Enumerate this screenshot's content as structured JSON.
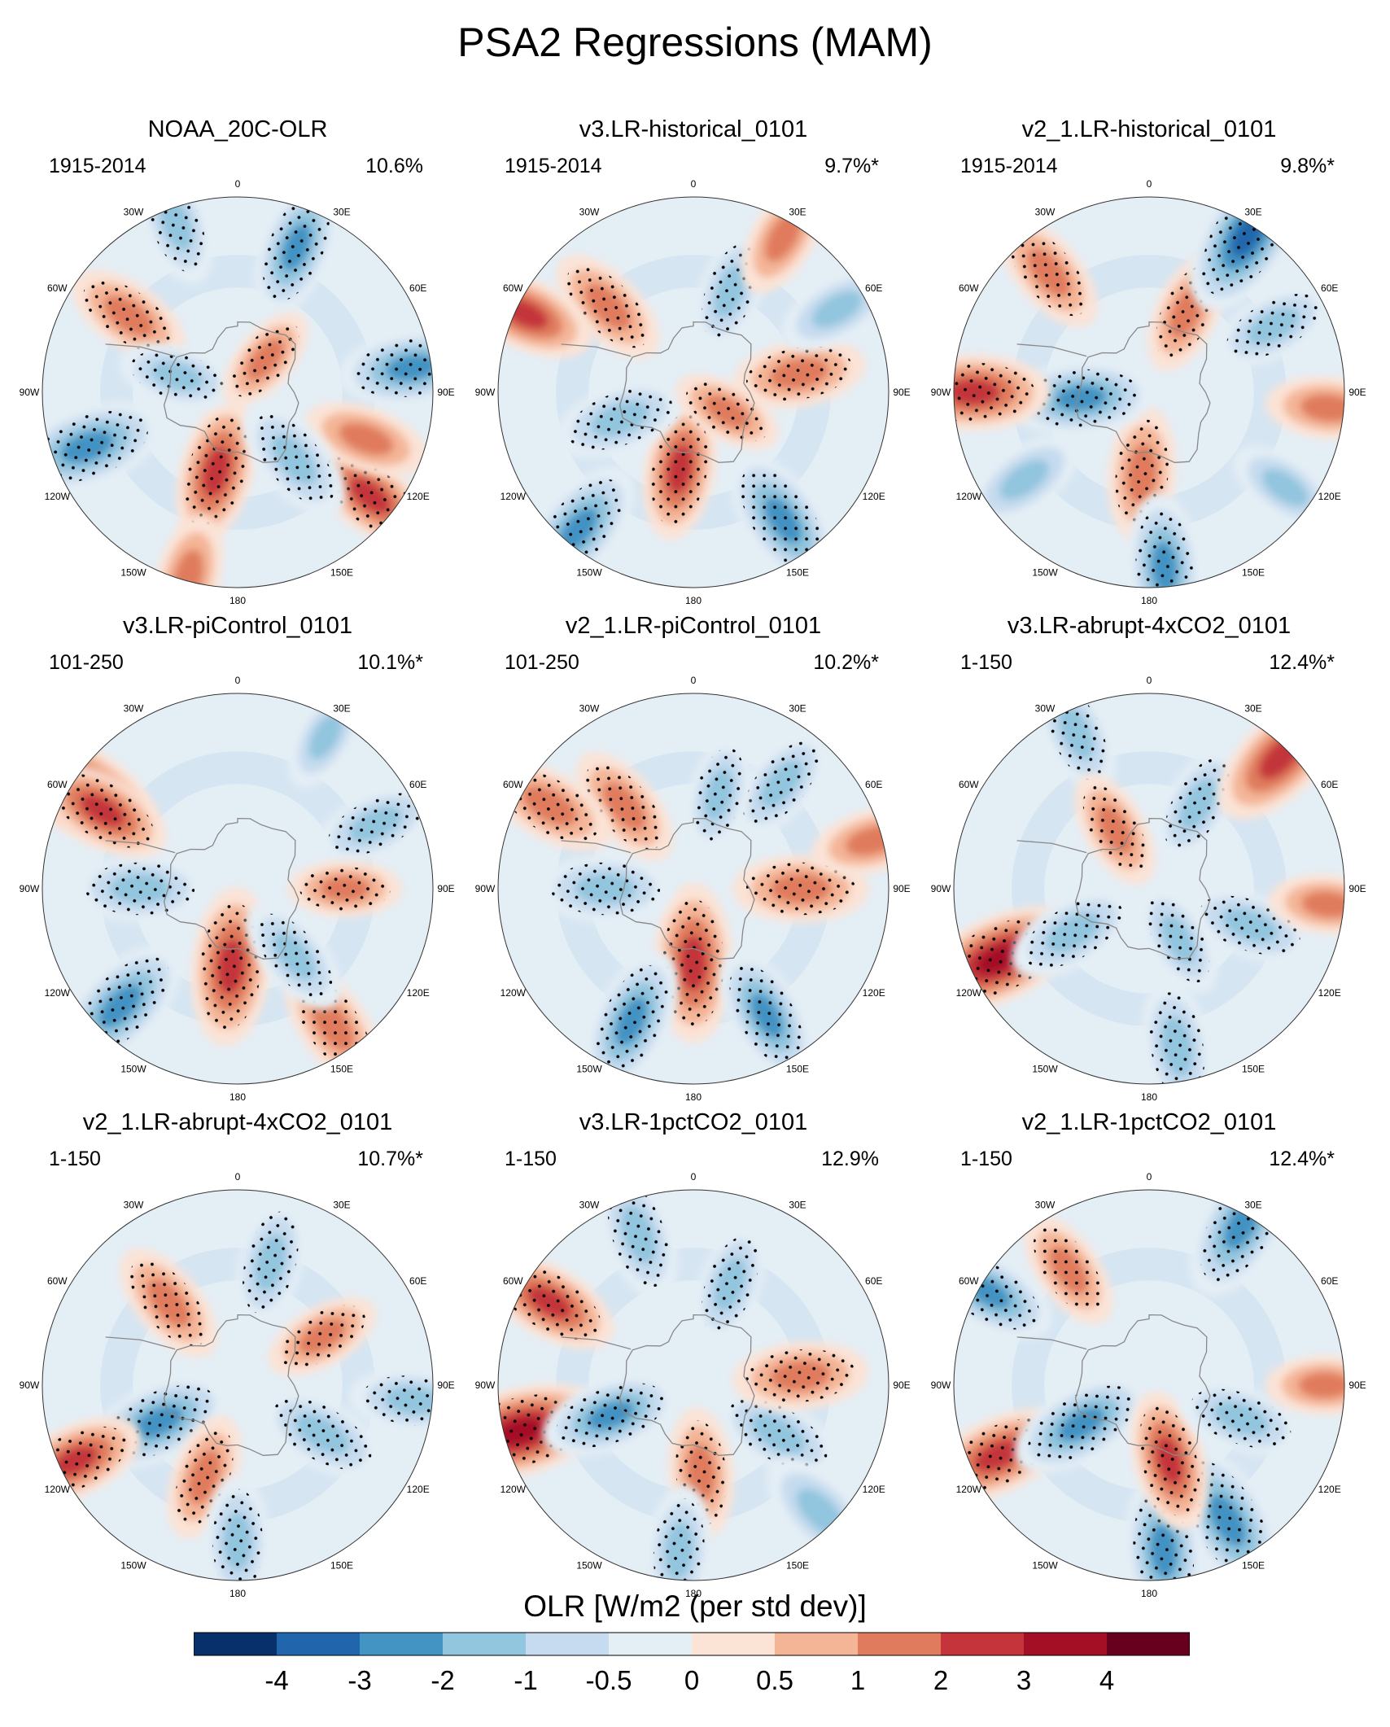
{
  "figure": {
    "title": "PSA2 Regressions (MAM)",
    "colorbar_title": "OLR [W/m2 (per std dev)]"
  },
  "colors": {
    "stipple": "#000000",
    "coast": "#888888",
    "border": "#333333"
  },
  "chart_data": {
    "type": "heatmap",
    "projection": "south polar stereographic",
    "variable": "OLR regression",
    "units": "W/m2 (per std dev)",
    "colorbar": {
      "levels": [
        -4,
        -3,
        -2,
        -1,
        -0.5,
        0,
        0.5,
        1,
        2,
        3,
        4
      ],
      "tick_labels": [
        "-4",
        "-3",
        "-2",
        "-1",
        "-0.5",
        "0",
        "0.5",
        "1",
        "2",
        "3",
        "4"
      ],
      "colors": [
        "#08306b",
        "#2166ac",
        "#4393c3",
        "#92c5de",
        "#c6dbef",
        "#e4eef5",
        "#fbe3d6",
        "#f4b597",
        "#e07b5d",
        "#c4343a",
        "#a50f26",
        "#67001f"
      ]
    },
    "longitude_labels": [
      "0",
      "30E",
      "60E",
      "90E",
      "120E",
      "150E",
      "180",
      "150W",
      "120W",
      "90W",
      "60W",
      "30W"
    ],
    "panels": [
      {
        "title": "NOAA_20C-OLR",
        "years": "1915-2014",
        "variance": "10.6%",
        "anomalies": [
          {
            "lon": 195,
            "r": 0.42,
            "value": 2.2,
            "stipple": true
          },
          {
            "lon": 195,
            "r": 0.98,
            "value": 1.5,
            "stipple": false
          },
          {
            "lon": 128,
            "r": 0.86,
            "value": 2.0,
            "stipple": true
          },
          {
            "lon": 82,
            "r": 0.9,
            "value": -2.2,
            "stipple": true
          },
          {
            "lon": 22,
            "r": 0.8,
            "value": -2.0,
            "stipple": true
          },
          {
            "lon": 305,
            "r": 0.68,
            "value": 1.6,
            "stipple": true
          },
          {
            "lon": 285,
            "r": 0.32,
            "value": -1.2,
            "stipple": true
          },
          {
            "lon": 250,
            "r": 0.82,
            "value": -2.6,
            "stipple": true
          },
          {
            "lon": 40,
            "r": 0.22,
            "value": 1.0,
            "stipple": true
          },
          {
            "lon": 110,
            "r": 0.7,
            "value": 1.5,
            "stipple": false
          },
          {
            "lon": 140,
            "r": 0.45,
            "value": -1.8,
            "stipple": true
          },
          {
            "lon": 340,
            "r": 0.92,
            "value": -1.5,
            "stipple": true
          }
        ]
      },
      {
        "title": "v3.LR-historical_0101",
        "years": "1915-2014",
        "variance": "9.7%*",
        "anomalies": [
          {
            "lon": 190,
            "r": 0.4,
            "value": 2.0,
            "stipple": true
          },
          {
            "lon": 145,
            "r": 0.8,
            "value": -2.4,
            "stipple": true
          },
          {
            "lon": 250,
            "r": 0.4,
            "value": -1.8,
            "stipple": true
          },
          {
            "lon": 315,
            "r": 0.62,
            "value": 1.6,
            "stipple": true
          },
          {
            "lon": 20,
            "r": 0.55,
            "value": -1.4,
            "stipple": true
          },
          {
            "lon": 80,
            "r": 0.55,
            "value": 1.7,
            "stipple": true
          },
          {
            "lon": 295,
            "r": 0.95,
            "value": 2.0,
            "stipple": false
          },
          {
            "lon": 220,
            "r": 0.92,
            "value": -2.4,
            "stipple": true
          },
          {
            "lon": 30,
            "r": 0.92,
            "value": 1.4,
            "stipple": false
          },
          {
            "lon": 60,
            "r": 0.85,
            "value": -1.4,
            "stipple": false
          },
          {
            "lon": 120,
            "r": 0.2,
            "value": 1.0,
            "stipple": true
          }
        ]
      },
      {
        "title": "v2_1.LR-historical_0101",
        "years": "1915-2014",
        "variance": "9.8%*",
        "anomalies": [
          {
            "lon": 185,
            "r": 0.42,
            "value": 1.8,
            "stipple": true
          },
          {
            "lon": 265,
            "r": 0.35,
            "value": -2.2,
            "stipple": true
          },
          {
            "lon": 270,
            "r": 0.9,
            "value": 2.4,
            "stipple": true
          },
          {
            "lon": 320,
            "r": 0.8,
            "value": 1.6,
            "stipple": true
          },
          {
            "lon": 25,
            "r": 0.45,
            "value": 1.4,
            "stipple": true
          },
          {
            "lon": 32,
            "r": 0.95,
            "value": -3.0,
            "stipple": true
          },
          {
            "lon": 62,
            "r": 0.72,
            "value": -1.5,
            "stipple": true
          },
          {
            "lon": 175,
            "r": 0.9,
            "value": -2.2,
            "stipple": true
          },
          {
            "lon": 95,
            "r": 0.92,
            "value": 1.4,
            "stipple": false
          },
          {
            "lon": 235,
            "r": 0.78,
            "value": -1.5,
            "stipple": false
          },
          {
            "lon": 125,
            "r": 0.85,
            "value": -1.2,
            "stipple": false
          }
        ]
      },
      {
        "title": "v3.LR-piControl_0101",
        "years": "101-250",
        "variance": "10.1%*",
        "anomalies": [
          {
            "lon": 185,
            "r": 0.4,
            "value": 2.6,
            "stipple": true
          },
          {
            "lon": 225,
            "r": 0.85,
            "value": -2.5,
            "stipple": true
          },
          {
            "lon": 270,
            "r": 0.5,
            "value": -1.8,
            "stipple": true
          },
          {
            "lon": 145,
            "r": 0.85,
            "value": 1.8,
            "stipple": true
          },
          {
            "lon": 140,
            "r": 0.45,
            "value": -1.5,
            "stipple": true
          },
          {
            "lon": 302,
            "r": 0.95,
            "value": 3.2,
            "stipple": false
          },
          {
            "lon": 300,
            "r": 0.8,
            "value": 2.0,
            "stipple": true
          },
          {
            "lon": 65,
            "r": 0.78,
            "value": -1.5,
            "stipple": true
          },
          {
            "lon": 90,
            "r": 0.55,
            "value": 1.0,
            "stipple": true
          },
          {
            "lon": 30,
            "r": 0.9,
            "value": -1.0,
            "stipple": false
          }
        ]
      },
      {
        "title": "v2_1.LR-piControl_0101",
        "years": "101-250",
        "variance": "10.2%*",
        "anomalies": [
          {
            "lon": 180,
            "r": 0.38,
            "value": 2.6,
            "stipple": true
          },
          {
            "lon": 205,
            "r": 0.75,
            "value": -2.3,
            "stipple": true
          },
          {
            "lon": 150,
            "r": 0.75,
            "value": -2.0,
            "stipple": true
          },
          {
            "lon": 270,
            "r": 0.45,
            "value": -1.8,
            "stipple": true
          },
          {
            "lon": 90,
            "r": 0.55,
            "value": 1.8,
            "stipple": true
          },
          {
            "lon": 320,
            "r": 0.55,
            "value": 1.6,
            "stipple": true
          },
          {
            "lon": 300,
            "r": 0.85,
            "value": 1.8,
            "stipple": true
          },
          {
            "lon": 40,
            "r": 0.7,
            "value": -1.5,
            "stipple": true
          },
          {
            "lon": 15,
            "r": 0.5,
            "value": -1.2,
            "stipple": true
          },
          {
            "lon": 75,
            "r": 0.95,
            "value": 1.4,
            "stipple": false
          }
        ]
      },
      {
        "title": "v3.LR-abrupt-4xCO2_0101",
        "years": "1-150",
        "variance": "12.4%*",
        "anomalies": [
          {
            "lon": 245,
            "r": 0.85,
            "value": 3.0,
            "stipple": true
          },
          {
            "lon": 240,
            "r": 0.45,
            "value": -1.8,
            "stipple": true
          },
          {
            "lon": 110,
            "r": 0.55,
            "value": -1.6,
            "stipple": true
          },
          {
            "lon": 30,
            "r": 0.5,
            "value": -1.5,
            "stipple": true
          },
          {
            "lon": 335,
            "r": 0.88,
            "value": -1.5,
            "stipple": true
          },
          {
            "lon": 45,
            "r": 0.95,
            "value": 2.5,
            "stipple": false
          },
          {
            "lon": 170,
            "r": 0.82,
            "value": -1.8,
            "stipple": true
          },
          {
            "lon": 330,
            "r": 0.35,
            "value": 1.3,
            "stipple": true
          },
          {
            "lon": 150,
            "r": 0.3,
            "value": -1.2,
            "stipple": true
          },
          {
            "lon": 95,
            "r": 0.92,
            "value": 1.2,
            "stipple": false
          }
        ]
      },
      {
        "title": "v2_1.LR-abrupt-4xCO2_0101",
        "years": "1-150",
        "variance": "10.7%*",
        "anomalies": [
          {
            "lon": 245,
            "r": 0.45,
            "value": -2.4,
            "stipple": true
          },
          {
            "lon": 245,
            "r": 0.92,
            "value": 2.0,
            "stipple": true
          },
          {
            "lon": 320,
            "r": 0.55,
            "value": 1.6,
            "stipple": true
          },
          {
            "lon": 15,
            "r": 0.65,
            "value": -1.6,
            "stipple": true
          },
          {
            "lon": 120,
            "r": 0.5,
            "value": -1.8,
            "stipple": true
          },
          {
            "lon": 200,
            "r": 0.5,
            "value": 1.5,
            "stipple": true
          },
          {
            "lon": 180,
            "r": 0.8,
            "value": -1.6,
            "stipple": true
          },
          {
            "lon": 95,
            "r": 0.9,
            "value": -1.5,
            "stipple": true
          },
          {
            "lon": 60,
            "r": 0.5,
            "value": 1.2,
            "stipple": true
          }
        ]
      },
      {
        "title": "v3.LR-1pctCO2_0101",
        "years": "1-150",
        "variance": "12.9%",
        "anomalies": [
          {
            "lon": 255,
            "r": 0.92,
            "value": 3.2,
            "stipple": true
          },
          {
            "lon": 300,
            "r": 0.85,
            "value": 2.0,
            "stipple": true
          },
          {
            "lon": 250,
            "r": 0.45,
            "value": -2.0,
            "stipple": true
          },
          {
            "lon": 120,
            "r": 0.5,
            "value": -1.8,
            "stipple": true
          },
          {
            "lon": 85,
            "r": 0.55,
            "value": 1.8,
            "stipple": true
          },
          {
            "lon": 175,
            "r": 0.45,
            "value": 1.6,
            "stipple": true
          },
          {
            "lon": 185,
            "r": 0.85,
            "value": -1.6,
            "stipple": true
          },
          {
            "lon": 340,
            "r": 0.82,
            "value": -1.8,
            "stipple": true
          },
          {
            "lon": 20,
            "r": 0.55,
            "value": -1.4,
            "stipple": true
          },
          {
            "lon": 135,
            "r": 0.92,
            "value": -1.8,
            "stipple": false
          }
        ]
      },
      {
        "title": "v2_1.LR-1pctCO2_0101",
        "years": "1-150",
        "variance": "12.4%*",
        "anomalies": [
          {
            "lon": 245,
            "r": 0.85,
            "value": 2.3,
            "stipple": true
          },
          {
            "lon": 240,
            "r": 0.4,
            "value": -2.2,
            "stipple": true
          },
          {
            "lon": 150,
            "r": 0.8,
            "value": -2.8,
            "stipple": true
          },
          {
            "lon": 175,
            "r": 0.85,
            "value": -2.5,
            "stipple": true
          },
          {
            "lon": 165,
            "r": 0.4,
            "value": 2.0,
            "stipple": true
          },
          {
            "lon": 110,
            "r": 0.5,
            "value": -1.6,
            "stipple": true
          },
          {
            "lon": 30,
            "r": 0.95,
            "value": -2.6,
            "stipple": true
          },
          {
            "lon": 325,
            "r": 0.72,
            "value": 1.4,
            "stipple": true
          },
          {
            "lon": 90,
            "r": 0.9,
            "value": 1.2,
            "stipple": false
          },
          {
            "lon": 300,
            "r": 0.95,
            "value": -2.0,
            "stipple": true
          }
        ]
      }
    ]
  }
}
